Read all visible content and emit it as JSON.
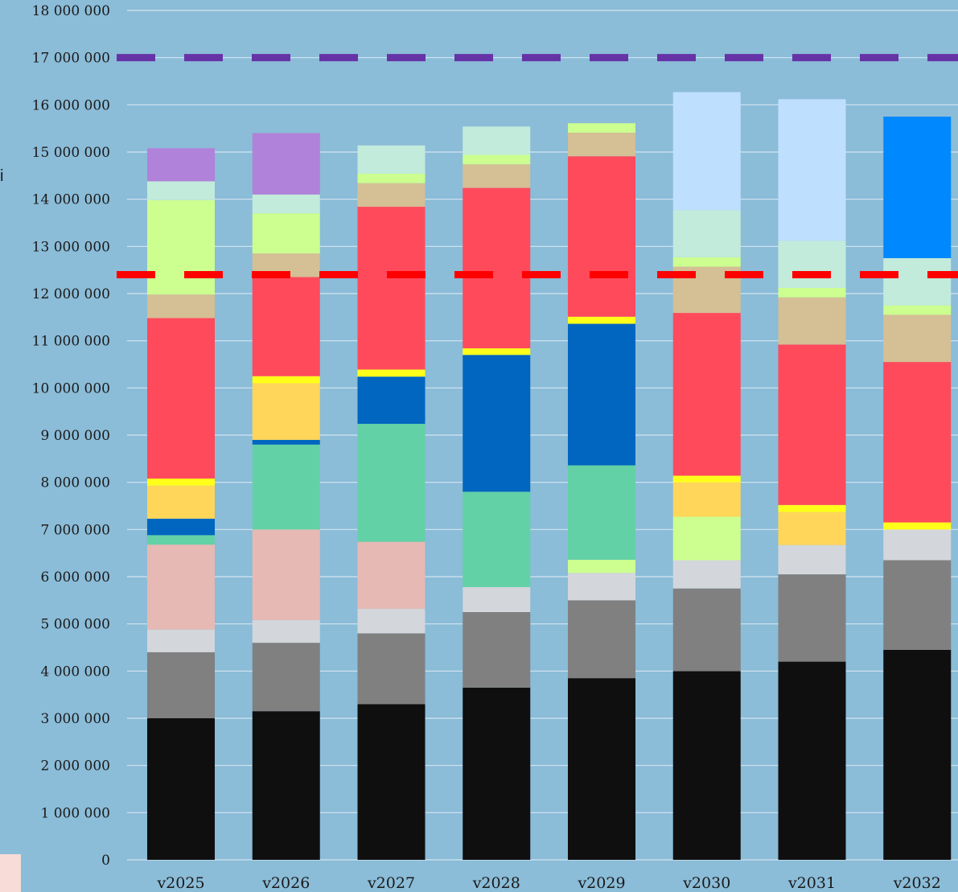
{
  "chart_data": {
    "type": "bar",
    "stacked": true,
    "categories": [
      "v2025",
      "v2026",
      "v2027",
      "v2028",
      "v2029",
      "v2030",
      "v2031",
      "v2032"
    ],
    "ylim": [
      0,
      18000000
    ],
    "yticks": [
      0,
      1000000,
      2000000,
      3000000,
      4000000,
      5000000,
      6000000,
      7000000,
      8000000,
      9000000,
      10000000,
      11000000,
      12000000,
      13000000,
      14000000,
      15000000,
      16000000,
      17000000,
      18000000
    ],
    "ytick_labels": [
      "0",
      "1 000 000",
      "2 000 000",
      "3 000 000",
      "4 000 000",
      "5 000 000",
      "6 000 000",
      "7 000 000",
      "8 000 000",
      "9 000 000",
      "10 000 000",
      "11 000 000",
      "12 000 000",
      "13 000 000",
      "14 000 000",
      "15 000 000",
      "16 000 000",
      "17 000 000",
      "18 000 000"
    ],
    "grid": true,
    "series": [
      {
        "color": "#0f0f0f",
        "values": [
          3000000,
          3150000,
          3300000,
          3650000,
          3850000,
          4000000,
          4200000,
          4450000
        ]
      },
      {
        "color": "#808080",
        "values": [
          1400000,
          1450000,
          1500000,
          1600000,
          1650000,
          1750000,
          1850000,
          1900000
        ]
      },
      {
        "color": "#d3d6da",
        "values": [
          480000,
          480000,
          520000,
          530000,
          580000,
          600000,
          620000,
          650000
        ]
      },
      {
        "color": "#e6b9b4",
        "values": [
          1800000,
          1920000,
          1420000,
          0,
          0,
          0,
          0,
          0
        ]
      },
      {
        "color": "#ccff8f",
        "values": [
          0,
          0,
          0,
          0,
          280000,
          920000,
          0,
          0
        ]
      },
      {
        "color": "#63d1a6",
        "values": [
          200000,
          1800000,
          2500000,
          2020000,
          2000000,
          0,
          0,
          0
        ]
      },
      {
        "color": "#0066bf",
        "values": [
          350000,
          100000,
          1000000,
          2900000,
          3000000,
          0,
          0,
          0
        ]
      },
      {
        "color": "#ffd659",
        "values": [
          700000,
          1200000,
          0,
          0,
          0,
          730000,
          700000,
          0
        ]
      },
      {
        "color": "#ffff1a",
        "values": [
          150000,
          150000,
          150000,
          140000,
          150000,
          140000,
          150000,
          150000
        ]
      },
      {
        "color": "#ff4a5c",
        "values": [
          3400000,
          2100000,
          3450000,
          3400000,
          3400000,
          3450000,
          3400000,
          3400000
        ]
      },
      {
        "color": "#d5bf94",
        "values": [
          500000,
          500000,
          500000,
          500000,
          500000,
          980000,
          1000000,
          1000000
        ]
      },
      {
        "color": "#ccff8f",
        "values": [
          2000000,
          850000,
          200000,
          200000,
          200000,
          200000,
          200000,
          200000
        ]
      },
      {
        "color": "#c2ebdb",
        "values": [
          400000,
          400000,
          600000,
          600000,
          0,
          1000000,
          1000000,
          1000000
        ]
      },
      {
        "color": "#bfdfff",
        "values": [
          0,
          0,
          0,
          0,
          0,
          2500000,
          3000000,
          0
        ]
      },
      {
        "color": "#0088ff",
        "values": [
          0,
          0,
          0,
          0,
          0,
          0,
          0,
          3000000
        ]
      },
      {
        "color": "#b082d9",
        "values": [
          700000,
          1300000,
          0,
          0,
          0,
          0,
          0,
          0
        ]
      }
    ],
    "reference_lines": [
      {
        "value": 17000000,
        "color": "#6633a6",
        "style": "dashed"
      },
      {
        "value": 12400000,
        "color": "#ff0000",
        "style": "dashed"
      }
    ]
  },
  "partial_text": "i"
}
